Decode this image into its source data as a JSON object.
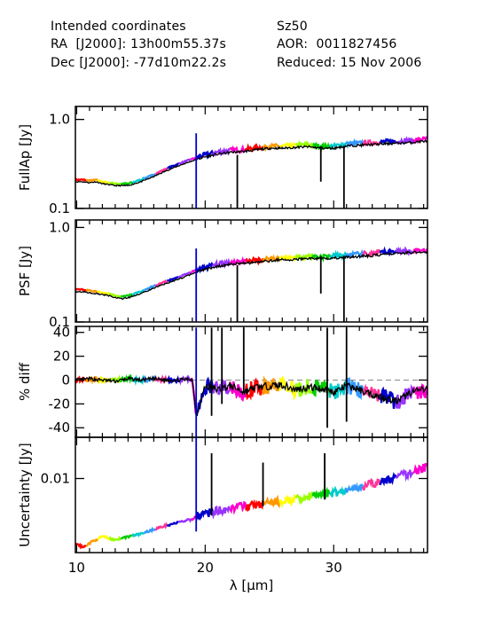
{
  "header": {
    "left_line1": "Intended coordinates",
    "left_line2": "RA  [J2000]: 13h00m55.37s",
    "left_line3": "Dec [J2000]: -77d10m22.2s",
    "right_line1": "Sz50",
    "right_line2": "AOR:  0011827456",
    "right_line3": "Reduced: 15 Nov 2006"
  },
  "chart_data": [
    {
      "type": "line",
      "panel": "fullap",
      "ylabel": "FullAp [Jy]",
      "yscale": "log",
      "ylim": [
        0.1,
        1.4
      ],
      "yticks": [
        "1.0",
        "0.1"
      ],
      "xlabel": "",
      "series_note": "colored segments = individual spectral orders; black = combined",
      "x": [
        9.9,
        10.5,
        11.0,
        11.5,
        12.0,
        12.5,
        13.0,
        13.5,
        14.0,
        14.5,
        15.0,
        16.0,
        17.0,
        18.0,
        19.0,
        19.5,
        20.0,
        21.0,
        22.0,
        23.0,
        24.0,
        25.0,
        26.0,
        27.0,
        28.0,
        29.0,
        30.0,
        31.0,
        32.0,
        33.0,
        34.0,
        35.0,
        36.0,
        37.0
      ],
      "y": [
        0.21,
        0.21,
        0.205,
        0.21,
        0.2,
        0.195,
        0.19,
        0.19,
        0.19,
        0.2,
        0.21,
        0.24,
        0.28,
        0.32,
        0.36,
        0.38,
        0.4,
        0.43,
        0.45,
        0.46,
        0.48,
        0.5,
        0.5,
        0.51,
        0.52,
        0.5,
        0.5,
        0.53,
        0.54,
        0.55,
        0.56,
        0.57,
        0.58,
        0.6
      ]
    },
    {
      "type": "line",
      "panel": "psf",
      "ylabel": "PSF [Jy]",
      "yscale": "log",
      "ylim": [
        0.1,
        1.2
      ],
      "yticks": [
        "1.0",
        "0.1"
      ],
      "xlabel": "",
      "x": [
        9.9,
        10.5,
        11.0,
        11.5,
        12.0,
        12.5,
        13.0,
        13.5,
        14.0,
        14.5,
        15.0,
        16.0,
        17.0,
        18.0,
        19.0,
        19.5,
        20.0,
        21.0,
        22.0,
        23.0,
        24.0,
        25.0,
        26.0,
        27.0,
        28.0,
        29.0,
        30.0,
        31.0,
        32.0,
        33.0,
        34.0,
        35.0,
        36.0,
        37.0
      ],
      "y": [
        0.22,
        0.22,
        0.215,
        0.21,
        0.205,
        0.2,
        0.19,
        0.185,
        0.19,
        0.2,
        0.21,
        0.24,
        0.27,
        0.3,
        0.34,
        0.36,
        0.38,
        0.41,
        0.43,
        0.44,
        0.45,
        0.47,
        0.48,
        0.48,
        0.5,
        0.49,
        0.5,
        0.51,
        0.52,
        0.53,
        0.55,
        0.56,
        0.57,
        0.58
      ]
    },
    {
      "type": "line",
      "panel": "pctdiff",
      "ylabel": "% diff",
      "yscale": "linear",
      "ylim": [
        -48,
        45
      ],
      "yticks": [
        "40",
        "20",
        "0",
        "-20",
        "-40"
      ],
      "xlabel": "",
      "x": [
        9.9,
        11.0,
        12.0,
        13.0,
        14.0,
        15.0,
        16.0,
        17.0,
        18.0,
        19.0,
        19.3,
        20.0,
        21.0,
        22.0,
        23.0,
        24.0,
        25.0,
        26.0,
        27.0,
        28.0,
        29.0,
        30.0,
        31.0,
        32.0,
        33.0,
        34.0,
        35.0,
        36.0,
        37.0
      ],
      "y": [
        0,
        1,
        0,
        -1,
        1,
        0,
        1,
        0,
        0,
        1,
        -30,
        -5,
        -8,
        -5,
        -10,
        -6,
        -5,
        -4,
        -8,
        -6,
        -7,
        -10,
        -5,
        -8,
        -12,
        -15,
        -18,
        -10,
        -8
      ]
    },
    {
      "type": "line",
      "panel": "uncertainty",
      "ylabel": "Uncertainty [Jy]",
      "yscale": "log",
      "ylim": [
        0.0004,
        0.06
      ],
      "yticks": [
        "0.01"
      ],
      "xlabel": "λ [µm]",
      "xticks": [
        "10",
        "20",
        "30"
      ],
      "x": [
        9.9,
        10.5,
        11.0,
        12.0,
        13.0,
        14.0,
        15.0,
        16.0,
        17.0,
        18.0,
        19.0,
        19.3,
        20.0,
        21.0,
        22.0,
        23.0,
        24.0,
        25.0,
        26.0,
        27.0,
        28.0,
        29.0,
        30.0,
        31.0,
        32.0,
        33.0,
        34.0,
        35.0,
        36.0,
        37.0
      ],
      "y": [
        0.0006,
        0.0005,
        0.0006,
        0.0008,
        0.0007,
        0.0008,
        0.0009,
        0.0011,
        0.0013,
        0.0015,
        0.0017,
        0.002,
        0.0022,
        0.0025,
        0.0028,
        0.003,
        0.0032,
        0.0035,
        0.0038,
        0.004,
        0.0045,
        0.005,
        0.0055,
        0.006,
        0.007,
        0.008,
        0.009,
        0.011,
        0.013,
        0.016
      ]
    }
  ],
  "order_colors": [
    "#0000cc",
    "#9933ff",
    "#ff00cc",
    "#ff0000",
    "#ff9900",
    "#ffff00",
    "#99ff00",
    "#00cc00",
    "#00cccc",
    "#3399ff",
    "#ff3399"
  ]
}
